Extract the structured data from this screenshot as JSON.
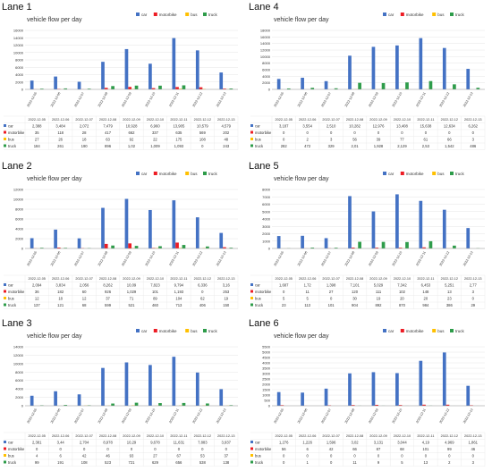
{
  "dates": [
    "2022-12-05",
    "2022-12-06",
    "2022-12-07",
    "2022-12-08",
    "2022-12-09",
    "2022-12-10",
    "2022-12-11",
    "2022-12-12",
    "2022-12-13"
  ],
  "series_names": [
    "car",
    "motorbike",
    "bus",
    "truck"
  ],
  "colors": {
    "car": "#4472c4",
    "motorbike": "#ed1c24",
    "bus": "#ffc000",
    "truck": "#2e9c4a",
    "axis": "#999999",
    "grid": "#e6e6e6",
    "text": "#333333"
  },
  "chart_data": [
    {
      "lane_title": "Lane 1",
      "title": "vehicle flow per day",
      "type": "bar",
      "ylim": [
        0,
        16000
      ],
      "yticks": [
        0,
        2000,
        4000,
        6000,
        8000,
        10000,
        12000,
        14000,
        16000
      ],
      "legend": "top-right",
      "categories": [
        "2022-12-05",
        "2022-12-06",
        "2022-12-07",
        "2022-12-08",
        "2022-12-09",
        "2022-12-10",
        "2022-12-11",
        "2022-12-12",
        "2022-12-13"
      ],
      "table_rows": [
        [
          "2,388",
          "3,484",
          "2,072",
          "7,479",
          "10,928",
          "6,960",
          "13,905",
          "10,579",
          "4,579"
        ],
        [
          "35",
          "118",
          "28",
          "417",
          "662",
          "337",
          "635",
          "569",
          "202"
        ],
        [
          "27",
          "26",
          "18",
          "63",
          "92",
          "22",
          "175",
          "108",
          "48"
        ],
        [
          "184",
          "261",
          "190",
          "896",
          "1,02",
          "1,009",
          "1,093",
          "0",
          "243"
        ]
      ],
      "series": [
        {
          "name": "car",
          "values": [
            2388,
            3484,
            2072,
            7479,
            10928,
            6960,
            13905,
            10579,
            4579
          ]
        },
        {
          "name": "motorbike",
          "values": [
            35,
            118,
            28,
            417,
            662,
            337,
            635,
            569,
            202
          ]
        },
        {
          "name": "bus",
          "values": [
            27,
            26,
            18,
            63,
            92,
            22,
            175,
            108,
            48
          ]
        },
        {
          "name": "truck",
          "values": [
            184,
            261,
            190,
            896,
            1020,
            1009,
            1093,
            0,
            243
          ]
        }
      ]
    },
    {
      "lane_title": "Lane 4",
      "title": "vehicle flow per day",
      "type": "bar",
      "ylim": [
        0,
        18000
      ],
      "yticks": [
        0,
        2000,
        4000,
        6000,
        8000,
        10000,
        12000,
        14000,
        16000,
        18000
      ],
      "legend": "top-right",
      "categories": [
        "2022-12-05",
        "2022-12-06",
        "2022-12-07",
        "2022-12-08",
        "2022-12-09",
        "2022-12-10",
        "2022-12-11",
        "2022-12-12",
        "2022-12-13"
      ],
      "table_rows": [
        [
          "3,187",
          "3,554",
          "2,510",
          "10,282",
          "12,976",
          "13,408",
          "15,638",
          "12,634",
          "6,262"
        ],
        [
          "0",
          "0",
          "0",
          "0",
          "0",
          "0",
          "0",
          "0",
          "0"
        ],
        [
          "0",
          "2",
          "3",
          "56",
          "39",
          "77",
          "61",
          "66",
          "3"
        ],
        [
          "282",
          "472",
          "329",
          "2,01",
          "1,928",
          "2,129",
          "2,53",
          "1,542",
          "486"
        ]
      ],
      "series": [
        {
          "name": "car",
          "values": [
            3187,
            3554,
            2510,
            10282,
            12976,
            13408,
            15638,
            12634,
            6262
          ]
        },
        {
          "name": "motorbike",
          "values": [
            0,
            0,
            0,
            0,
            0,
            0,
            0,
            0,
            0
          ]
        },
        {
          "name": "bus",
          "values": [
            0,
            2,
            3,
            56,
            39,
            77,
            61,
            66,
            3
          ]
        },
        {
          "name": "truck",
          "values": [
            282,
            472,
            329,
            2010,
            1928,
            2129,
            2530,
            1542,
            486
          ]
        }
      ]
    },
    {
      "lane_title": "Lane 2",
      "title": "vehicle flow per day",
      "type": "bar",
      "ylim": [
        0,
        12000
      ],
      "yticks": [
        0,
        2000,
        4000,
        6000,
        8000,
        10000,
        12000
      ],
      "legend": "top-right",
      "categories": [
        "2022-12-05",
        "2022-12-06",
        "2022-12-07",
        "2022-12-08",
        "2022-12-09",
        "2022-12-10",
        "2022-12-11",
        "2022-12-12",
        "2022-12-13"
      ],
      "table_rows": [
        [
          "2,094",
          "3,834",
          "2,056",
          "8,262",
          "10,09",
          "7,823",
          "9,794",
          "6,336",
          "3,16"
        ],
        [
          "36",
          "182",
          "60",
          "926",
          "1,029",
          "101",
          "1,193",
          "0",
          "253"
        ],
        [
          "12",
          "18",
          "12",
          "37",
          "71",
          "89",
          "104",
          "62",
          "19"
        ],
        [
          "137",
          "121",
          "68",
          "599",
          "521",
          "460",
          "713",
          "406",
          "150"
        ]
      ],
      "series": [
        {
          "name": "car",
          "values": [
            2094,
            3834,
            2056,
            8262,
            10090,
            7823,
            9794,
            6336,
            3160
          ]
        },
        {
          "name": "motorbike",
          "values": [
            36,
            182,
            60,
            926,
            1029,
            101,
            1193,
            0,
            253
          ]
        },
        {
          "name": "bus",
          "values": [
            12,
            18,
            12,
            37,
            71,
            89,
            104,
            62,
            19
          ]
        },
        {
          "name": "truck",
          "values": [
            137,
            121,
            68,
            599,
            521,
            460,
            713,
            406,
            150
          ]
        }
      ]
    },
    {
      "lane_title": "Lane 5",
      "title": "vehicle flow per day",
      "type": "bar",
      "ylim": [
        0,
        8000
      ],
      "yticks": [
        0,
        1000,
        2000,
        3000,
        4000,
        5000,
        6000,
        7000,
        8000
      ],
      "legend": "top-right",
      "categories": [
        "2022-12-05",
        "2022-12-06",
        "2022-12-07",
        "2022-12-08",
        "2022-12-09",
        "2022-12-10",
        "2022-12-11",
        "2022-12-12",
        "2022-12-13"
      ],
      "table_rows": [
        [
          "1,687",
          "1,72",
          "1,398",
          "7,101",
          "5,029",
          "7,342",
          "6,453",
          "5,251",
          "2,77"
        ],
        [
          "0",
          "11",
          "27",
          "120",
          "111",
          "102",
          "148",
          "13",
          "3"
        ],
        [
          "5",
          "5",
          "0",
          "30",
          "19",
          "20",
          "20",
          "23",
          "0"
        ],
        [
          "23",
          "113",
          "101",
          "904",
          "892",
          "870",
          "984",
          "386",
          "29"
        ]
      ],
      "series": [
        {
          "name": "car",
          "values": [
            1687,
            1720,
            1398,
            7101,
            5029,
            7342,
            6453,
            5251,
            2770
          ]
        },
        {
          "name": "motorbike",
          "values": [
            0,
            11,
            27,
            120,
            111,
            102,
            148,
            13,
            3
          ]
        },
        {
          "name": "bus",
          "values": [
            5,
            5,
            0,
            30,
            19,
            20,
            20,
            23,
            0
          ]
        },
        {
          "name": "truck",
          "values": [
            23,
            113,
            101,
            904,
            892,
            870,
            984,
            386,
            29
          ]
        }
      ]
    },
    {
      "lane_title": "Lane 3",
      "title": "vehicle flow per day",
      "type": "bar",
      "ylim": [
        0,
        14000
      ],
      "yticks": [
        0,
        2000,
        4000,
        6000,
        8000,
        10000,
        12000,
        14000
      ],
      "legend": "top-right",
      "categories": [
        "2022-12-05",
        "2022-12-06",
        "2022-12-07",
        "2022-12-08",
        "2022-12-09",
        "2022-12-10",
        "2022-12-11",
        "2022-12-12",
        "2022-12-13"
      ],
      "table_rows": [
        [
          "2,381",
          "3,44",
          "2,704",
          "8,978",
          "10,29",
          "9,678",
          "11,631",
          "7,883",
          "3,937"
        ],
        [
          "0",
          "0",
          "0",
          "0",
          "0",
          "0",
          "0",
          "0",
          "0"
        ],
        [
          "4",
          "6",
          "42",
          "46",
          "93",
          "27",
          "67",
          "53",
          "37"
        ],
        [
          "99",
          "191",
          "108",
          "523",
          "721",
          "629",
          "656",
          "538",
          "138"
        ]
      ],
      "series": [
        {
          "name": "car",
          "values": [
            2381,
            3440,
            2704,
            8978,
            10290,
            9678,
            11631,
            7883,
            3937
          ]
        },
        {
          "name": "motorbike",
          "values": [
            0,
            0,
            0,
            0,
            0,
            0,
            0,
            0,
            0
          ]
        },
        {
          "name": "bus",
          "values": [
            4,
            6,
            42,
            46,
            93,
            27,
            67,
            53,
            37
          ]
        },
        {
          "name": "truck",
          "values": [
            99,
            191,
            108,
            523,
            721,
            629,
            656,
            538,
            138
          ]
        }
      ]
    },
    {
      "lane_title": "Lane 6",
      "title": "vehicle flow per day",
      "type": "bar",
      "ylim": [
        0,
        5500
      ],
      "yticks": [
        0,
        500,
        1000,
        1500,
        2000,
        2500,
        3000,
        3500,
        4000,
        4500,
        5000,
        5500
      ],
      "legend": "top-right",
      "categories": [
        "2022-12-05",
        "2022-12-06",
        "2022-12-07",
        "2022-12-08",
        "2022-12-09",
        "2022-12-10",
        "2022-12-11",
        "2022-12-12",
        "2022-12-13"
      ],
      "table_rows": [
        [
          "1,276",
          "1,226",
          "1,596",
          "3,02",
          "3,131",
          "3,044",
          "4,19",
          "4,969",
          "1,861"
        ],
        [
          "56",
          "6",
          "42",
          "66",
          "87",
          "68",
          "101",
          "99",
          "46"
        ],
        [
          "0",
          "0",
          "0",
          "0",
          "0",
          "0",
          "0",
          "0",
          "0"
        ],
        [
          "0",
          "1",
          "0",
          "11",
          "9",
          "5",
          "13",
          "2",
          "3"
        ]
      ],
      "series": [
        {
          "name": "car",
          "values": [
            1276,
            1226,
            1596,
            3020,
            3131,
            3044,
            4190,
            4969,
            1861
          ]
        },
        {
          "name": "motorbike",
          "values": [
            56,
            6,
            42,
            66,
            87,
            68,
            101,
            99,
            46
          ]
        },
        {
          "name": "bus",
          "values": [
            0,
            0,
            0,
            0,
            0,
            0,
            0,
            0,
            0
          ]
        },
        {
          "name": "truck",
          "values": [
            0,
            1,
            0,
            11,
            9,
            5,
            13,
            2,
            3
          ]
        }
      ]
    }
  ]
}
